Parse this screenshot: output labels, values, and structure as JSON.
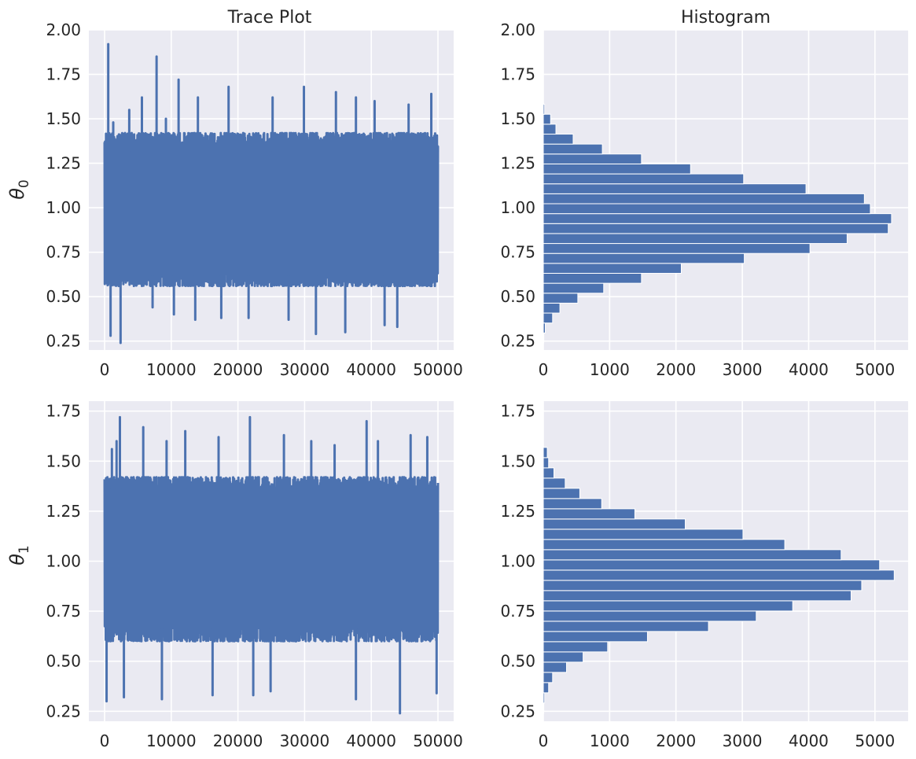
{
  "figure": {
    "titles": {
      "trace": "Trace Plot",
      "hist": "Histogram"
    },
    "ylabels": {
      "theta0": "θ",
      "theta0_sub": "0",
      "theta1": "θ",
      "theta1_sub": "1"
    }
  },
  "chart_data": [
    {
      "id": "trace0",
      "type": "line",
      "title": "Trace Plot",
      "ylabel": "θ0",
      "xlim": [
        0,
        50000
      ],
      "ylim": [
        0.2,
        2.0
      ],
      "xticks": [
        0,
        10000,
        20000,
        30000,
        40000,
        50000
      ],
      "yticks": [
        0.25,
        0.5,
        0.75,
        1.0,
        1.25,
        1.5,
        1.75,
        2.0
      ],
      "series": [
        {
          "color": "#4c72b0"
        }
      ],
      "band": {
        "low": 0.56,
        "high": 1.42
      },
      "spikes": [
        [
          550,
          1.92
        ],
        [
          900,
          0.28
        ],
        [
          1300,
          1.48
        ],
        [
          2400,
          0.24
        ],
        [
          3700,
          1.55
        ],
        [
          5600,
          1.62
        ],
        [
          7200,
          0.44
        ],
        [
          7800,
          1.85
        ],
        [
          9200,
          1.5
        ],
        [
          10400,
          0.4
        ],
        [
          11100,
          1.72
        ],
        [
          13600,
          0.37
        ],
        [
          14000,
          1.62
        ],
        [
          17500,
          0.38
        ],
        [
          18600,
          1.68
        ],
        [
          21600,
          0.38
        ],
        [
          25200,
          1.62
        ],
        [
          27600,
          0.37
        ],
        [
          29900,
          1.68
        ],
        [
          31700,
          0.29
        ],
        [
          34700,
          1.65
        ],
        [
          36100,
          0.3
        ],
        [
          37700,
          1.62
        ],
        [
          40500,
          1.6
        ],
        [
          43900,
          0.33
        ],
        [
          45600,
          1.58
        ],
        [
          49000,
          1.64
        ],
        [
          42000,
          0.34
        ]
      ]
    },
    {
      "id": "hist0",
      "type": "bar",
      "orientation": "horizontal",
      "title": "Histogram",
      "xlim": [
        0,
        5500
      ],
      "ylim": [
        0.2,
        2.0
      ],
      "xticks": [
        0,
        1000,
        2000,
        3000,
        4000,
        5000
      ],
      "yticks": [
        0.25,
        0.5,
        0.75,
        1.0,
        1.25,
        1.5,
        1.75,
        2.0
      ],
      "bin_start": 0.24,
      "bin_width": 0.0559,
      "counts": [
        0,
        30,
        140,
        250,
        520,
        910,
        1480,
        2080,
        3030,
        4020,
        4580,
        5200,
        5250,
        4930,
        4840,
        3960,
        3020,
        2220,
        1480,
        890,
        450,
        190,
        110,
        20
      ],
      "color": "#4c72b0"
    },
    {
      "id": "trace1",
      "type": "line",
      "ylabel": "θ1",
      "xlim": [
        0,
        50000
      ],
      "ylim": [
        0.2,
        1.8
      ],
      "xticks": [
        0,
        10000,
        20000,
        30000,
        40000,
        50000
      ],
      "yticks": [
        0.25,
        0.5,
        0.75,
        1.0,
        1.25,
        1.5,
        1.75
      ],
      "series": [
        {
          "color": "#4c72b0"
        }
      ],
      "band": {
        "low": 0.6,
        "high": 1.42
      },
      "spikes": [
        [
          300,
          0.3
        ],
        [
          1100,
          1.56
        ],
        [
          1800,
          1.6
        ],
        [
          2300,
          1.72
        ],
        [
          2900,
          0.32
        ],
        [
          5800,
          1.67
        ],
        [
          8600,
          0.31
        ],
        [
          9300,
          1.6
        ],
        [
          12100,
          1.65
        ],
        [
          16200,
          0.33
        ],
        [
          17100,
          1.62
        ],
        [
          21800,
          1.72
        ],
        [
          22300,
          0.33
        ],
        [
          24900,
          0.35
        ],
        [
          26900,
          1.63
        ],
        [
          31000,
          1.6
        ],
        [
          34500,
          1.58
        ],
        [
          37700,
          0.31
        ],
        [
          39300,
          1.7
        ],
        [
          41000,
          1.6
        ],
        [
          44300,
          0.24
        ],
        [
          45900,
          1.63
        ],
        [
          48400,
          1.62
        ],
        [
          49800,
          0.34
        ]
      ]
    },
    {
      "id": "hist1",
      "type": "bar",
      "orientation": "horizontal",
      "xlim": [
        0,
        5500
      ],
      "ylim": [
        0.2,
        1.8
      ],
      "xticks": [
        0,
        1000,
        2000,
        3000,
        4000,
        5000
      ],
      "yticks": [
        0.25,
        0.5,
        0.75,
        1.0,
        1.25,
        1.5,
        1.75
      ],
      "bin_start": 0.24,
      "bin_width": 0.0511,
      "counts": [
        0,
        20,
        80,
        140,
        350,
        600,
        970,
        1570,
        2490,
        3210,
        3760,
        4640,
        4800,
        5290,
        5070,
        4490,
        3640,
        3010,
        2140,
        1380,
        880,
        550,
        330,
        160,
        80,
        60
      ],
      "color": "#4c72b0"
    }
  ]
}
